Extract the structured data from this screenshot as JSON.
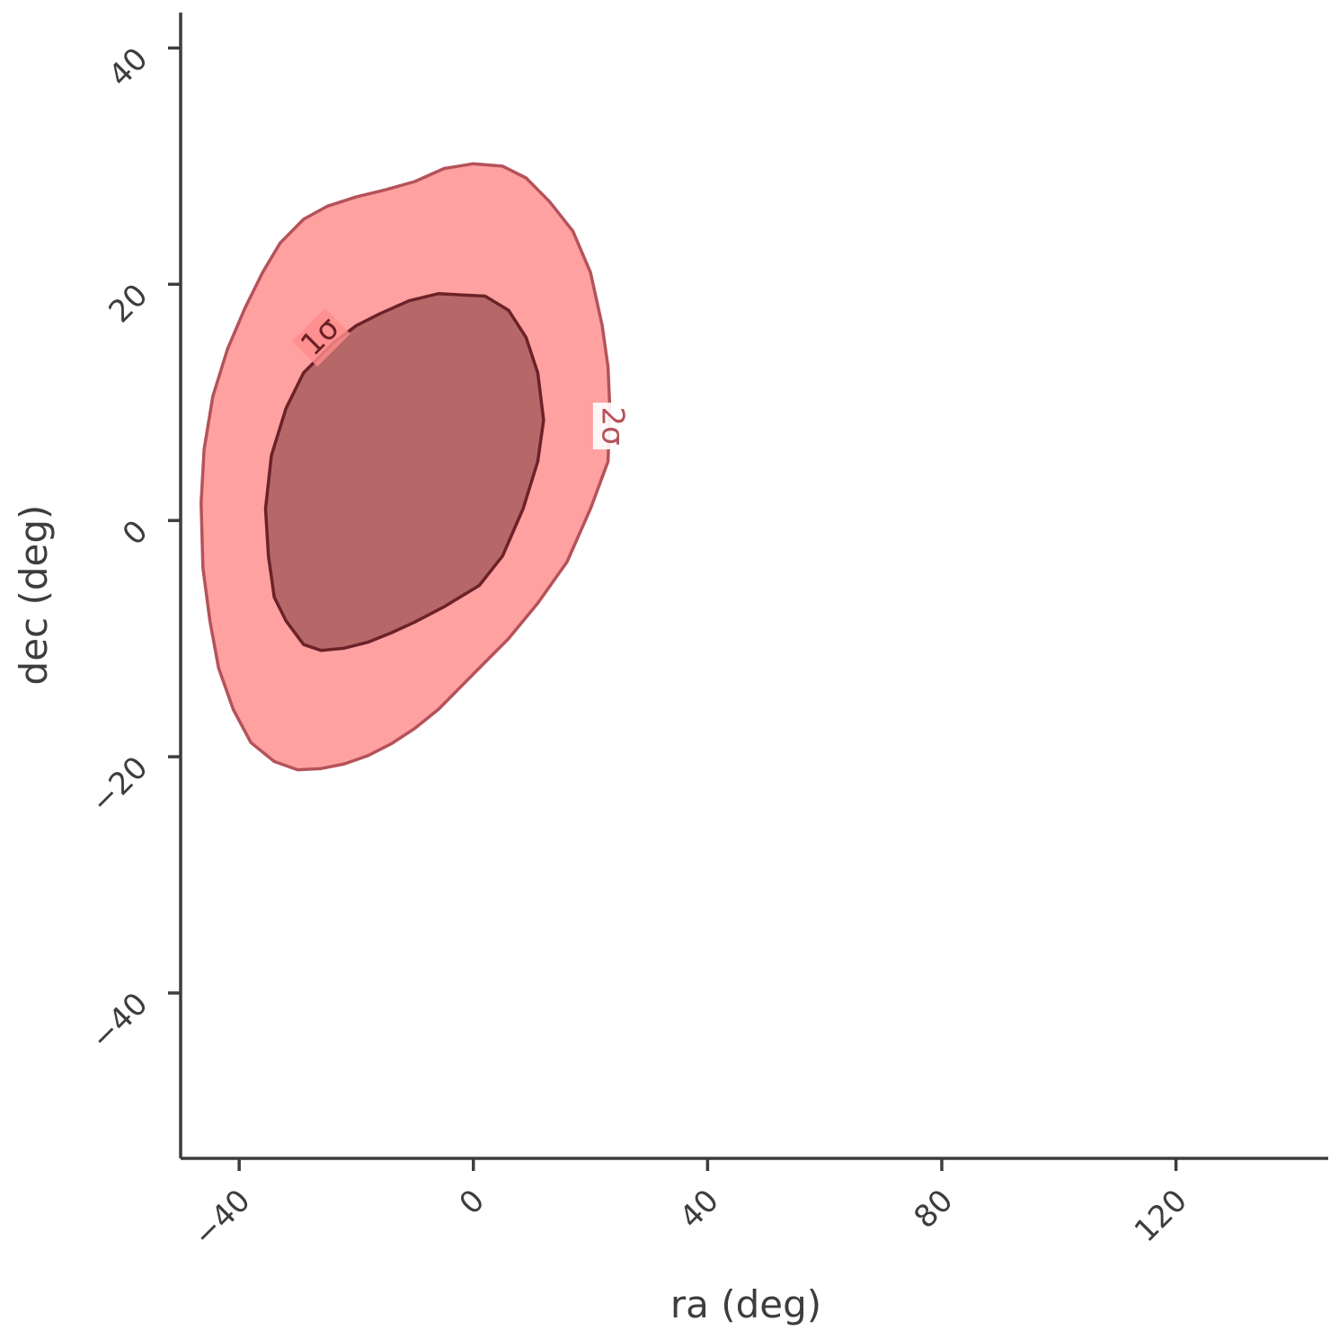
{
  "chart_data": {
    "type": "contour",
    "xlabel": "ra (deg)",
    "ylabel": "dec (deg)",
    "xlim": [
      -50,
      146
    ],
    "ylim": [
      -54,
      43
    ],
    "x_ticks": [
      "−40",
      "0",
      "40",
      "80",
      "120"
    ],
    "x_tick_values": [
      -40,
      0,
      40,
      80,
      120
    ],
    "y_ticks": [
      "40",
      "20",
      "0",
      "−20",
      "−40"
    ],
    "y_tick_values": [
      40,
      20,
      0,
      -20,
      -40
    ],
    "grid": false,
    "colors": {
      "outer_fill": "#ff8c8c",
      "outer_line": "#b5525a",
      "inner_fill": "#a45a5a",
      "inner_line": "#6b2228",
      "axis": "#3d3d3d"
    },
    "contours": [
      {
        "level_label": "2σ",
        "label_at": [
          23.5,
          8
        ],
        "points": [
          [
            0,
            30.2
          ],
          [
            -5,
            29.8
          ],
          [
            -10,
            28.7
          ],
          [
            -15,
            28.0
          ],
          [
            -20,
            27.4
          ],
          [
            -25,
            26.6
          ],
          [
            -29,
            25.5
          ],
          [
            -33,
            23.5
          ],
          [
            -36,
            21.0
          ],
          [
            -39,
            18.0
          ],
          [
            -42,
            14.5
          ],
          [
            -44.5,
            10.5
          ],
          [
            -46,
            6.0
          ],
          [
            -46.5,
            1.5
          ],
          [
            -46.2,
            -4.0
          ],
          [
            -45,
            -8.5
          ],
          [
            -43.5,
            -12.5
          ],
          [
            -41,
            -16.0
          ],
          [
            -38,
            -18.8
          ],
          [
            -34,
            -20.4
          ],
          [
            -30,
            -21.1
          ],
          [
            -26,
            -21.0
          ],
          [
            -22,
            -20.6
          ],
          [
            -18,
            -19.9
          ],
          [
            -14,
            -18.9
          ],
          [
            -10,
            -17.6
          ],
          [
            -6,
            -16.0
          ],
          [
            -2,
            -14.0
          ],
          [
            2,
            -12.0
          ],
          [
            6,
            -10.0
          ],
          [
            11,
            -7.0
          ],
          [
            16,
            -3.5
          ],
          [
            20,
            1.0
          ],
          [
            23,
            5.0
          ],
          [
            23.3,
            9.5
          ],
          [
            23,
            13.0
          ],
          [
            22,
            16.5
          ],
          [
            20,
            21.0
          ],
          [
            17,
            24.5
          ],
          [
            13,
            27.0
          ],
          [
            9,
            29.0
          ],
          [
            5,
            30.0
          ]
        ]
      },
      {
        "level_label": "1σ",
        "label_at": [
          -26,
          15.5
        ],
        "points": [
          [
            -6,
            19.2
          ],
          [
            -11,
            18.6
          ],
          [
            -16,
            17.5
          ],
          [
            -20,
            16.5
          ],
          [
            -24,
            15.0
          ],
          [
            -29,
            12.5
          ],
          [
            -32,
            9.5
          ],
          [
            -34.5,
            5.5
          ],
          [
            -35.5,
            1.0
          ],
          [
            -35,
            -3.0
          ],
          [
            -34,
            -6.5
          ],
          [
            -32,
            -8.5
          ],
          [
            -29,
            -10.5
          ],
          [
            -26,
            -11.0
          ],
          [
            -22,
            -10.8
          ],
          [
            -18,
            -10.3
          ],
          [
            -14,
            -9.5
          ],
          [
            -10,
            -8.6
          ],
          [
            -5,
            -7.3
          ],
          [
            1,
            -5.5
          ],
          [
            5,
            -3.0
          ],
          [
            8.5,
            1.0
          ],
          [
            11,
            5.0
          ],
          [
            12,
            8.5
          ],
          [
            11,
            12.5
          ],
          [
            9,
            15.5
          ],
          [
            6,
            17.8
          ],
          [
            2,
            19.0
          ]
        ]
      }
    ]
  }
}
